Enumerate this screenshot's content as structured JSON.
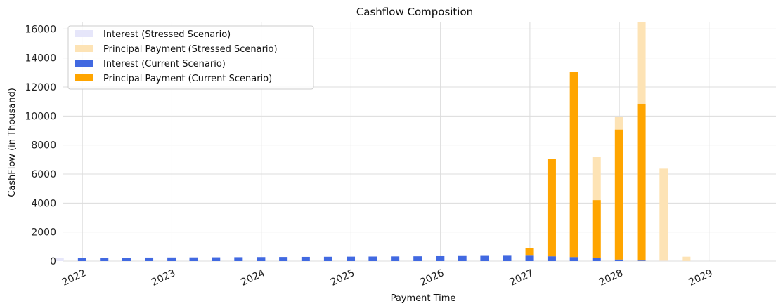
{
  "chart_data": {
    "type": "bar",
    "title": "Cashflow Composition",
    "xlabel": "Payment Time",
    "ylabel": "CashFlow (in Thousand)",
    "ylim": [
      0,
      16500
    ],
    "yticks": [
      0,
      2000,
      4000,
      6000,
      8000,
      10000,
      12000,
      14000,
      16000
    ],
    "xtick_labels": [
      "2022",
      "2023",
      "2024",
      "2025",
      "2026",
      "2027",
      "2028",
      "2029"
    ],
    "grid": true,
    "legend_position": "top-left",
    "colors": {
      "interest_stressed": "#e6e6fa",
      "principal_stressed": "#fde3b5",
      "interest_current": "#4169e1",
      "principal_current": "#ffa500"
    },
    "series": [
      {
        "name": "Interest (Stressed Scenario)",
        "x": [
          "2021-09-30",
          "2021-12-31",
          "2022-03-31",
          "2022-06-30",
          "2022-09-30",
          "2022-12-31",
          "2023-03-31",
          "2023-06-30",
          "2023-09-30",
          "2023-12-31",
          "2024-03-31",
          "2024-06-30",
          "2024-09-30",
          "2024-12-31",
          "2025-03-31",
          "2025-06-30",
          "2025-09-30",
          "2025-12-31",
          "2026-03-31",
          "2026-06-30",
          "2026-09-30",
          "2026-12-31",
          "2027-03-31",
          "2027-06-30",
          "2027-09-30",
          "2027-12-31",
          "2028-03-31",
          "2028-06-30",
          "2028-09-30"
        ],
        "values": [
          220,
          225,
          230,
          235,
          240,
          245,
          250,
          255,
          262,
          270,
          278,
          285,
          293,
          300,
          308,
          315,
          322,
          330,
          340,
          350,
          355,
          340,
          300,
          260,
          220,
          170,
          80,
          20,
          5
        ]
      },
      {
        "name": "Principal Payment (Stressed Scenario)",
        "x": [
          "2021-09-30",
          "2021-12-31",
          "2022-03-31",
          "2022-06-30",
          "2022-09-30",
          "2022-12-31",
          "2023-03-31",
          "2023-06-30",
          "2023-09-30",
          "2023-12-31",
          "2024-03-31",
          "2024-06-30",
          "2024-09-30",
          "2024-12-31",
          "2025-03-31",
          "2025-06-30",
          "2025-09-30",
          "2025-12-31",
          "2026-03-31",
          "2026-06-30",
          "2026-09-30",
          "2026-12-31",
          "2027-03-31",
          "2027-06-30",
          "2027-09-30",
          "2027-12-31",
          "2028-03-31",
          "2028-06-30",
          "2028-09-30"
        ],
        "values": [
          0,
          0,
          0,
          0,
          0,
          0,
          0,
          0,
          0,
          0,
          0,
          0,
          0,
          0,
          0,
          0,
          0,
          0,
          0,
          0,
          0,
          0,
          3550,
          3600,
          6950,
          9750,
          16500,
          6350,
          300
        ]
      },
      {
        "name": "Interest (Current Scenario)",
        "x": [
          "2021-12-31",
          "2022-03-31",
          "2022-06-30",
          "2022-09-30",
          "2022-12-31",
          "2023-03-31",
          "2023-06-30",
          "2023-09-30",
          "2023-12-31",
          "2024-03-31",
          "2024-06-30",
          "2024-09-30",
          "2024-12-31",
          "2025-03-31",
          "2025-06-30",
          "2025-09-30",
          "2025-12-31",
          "2026-03-31",
          "2026-06-30",
          "2026-09-30",
          "2026-12-31",
          "2027-03-31",
          "2027-06-30",
          "2027-09-30",
          "2027-12-31",
          "2028-03-31"
        ],
        "values": [
          230,
          235,
          240,
          245,
          250,
          255,
          262,
          270,
          278,
          285,
          293,
          300,
          308,
          315,
          322,
          330,
          340,
          350,
          360,
          368,
          375,
          330,
          280,
          200,
          110,
          40
        ]
      },
      {
        "name": "Principal Payment (Current Scenario)",
        "x": [
          "2021-12-31",
          "2022-03-31",
          "2022-06-30",
          "2022-09-30",
          "2022-12-31",
          "2023-03-31",
          "2023-06-30",
          "2023-09-30",
          "2023-12-31",
          "2024-03-31",
          "2024-06-30",
          "2024-09-30",
          "2024-12-31",
          "2025-03-31",
          "2025-06-30",
          "2025-09-30",
          "2025-12-31",
          "2026-03-31",
          "2026-06-30",
          "2026-09-30",
          "2026-12-31",
          "2027-03-31",
          "2027-06-30",
          "2027-09-30",
          "2027-12-31",
          "2028-03-31"
        ],
        "values": [
          0,
          0,
          0,
          0,
          0,
          0,
          0,
          0,
          0,
          0,
          0,
          0,
          0,
          0,
          0,
          0,
          0,
          0,
          0,
          0,
          500,
          6700,
          12750,
          4000,
          8950,
          10800
        ]
      }
    ]
  }
}
